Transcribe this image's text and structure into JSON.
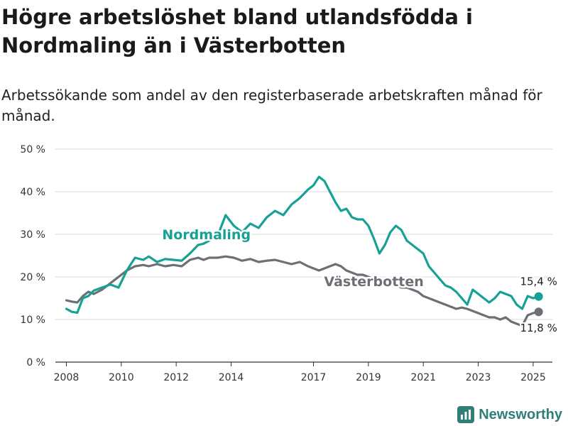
{
  "title": "Högre arbetslöshet bland utlandsfödda i Nordmaling än i Västerbotten",
  "subtitle": "Arbetssökande som andel av den registerbaserade arbetskraften månad för månad.",
  "brand": {
    "name": "Newsworthy",
    "icon": "bar-chart-logo-icon"
  },
  "chart_data": {
    "type": "line",
    "title": "Högre arbetslöshet bland utlandsfödda i Nordmaling än i Västerbotten",
    "subtitle": "Arbetssökande som andel av den registerbaserade arbetskraften månad för månad.",
    "xlabel": "",
    "ylabel": "",
    "ylim": [
      0,
      50
    ],
    "y_ticks": [
      0,
      10,
      20,
      30,
      40,
      50
    ],
    "y_tick_labels": [
      "0 %",
      "10 %",
      "20 %",
      "30 %",
      "40 %",
      "50 %"
    ],
    "x_ticks": [
      2008,
      2010,
      2012,
      2014,
      2017,
      2019,
      2021,
      2023,
      2025
    ],
    "x_tick_labels": [
      "2008",
      "2010",
      "2012",
      "2014",
      "2017",
      "2019",
      "2021",
      "2023",
      "2025"
    ],
    "grid": true,
    "series": [
      {
        "name": "Nordmaling",
        "color": "#17a194",
        "end_label": "15,4 %",
        "points": [
          [
            2008.0,
            12.5
          ],
          [
            2008.2,
            11.8
          ],
          [
            2008.4,
            11.6
          ],
          [
            2008.6,
            15.0
          ],
          [
            2008.8,
            15.5
          ],
          [
            2009.0,
            16.8
          ],
          [
            2009.3,
            17.5
          ],
          [
            2009.6,
            18.2
          ],
          [
            2009.9,
            17.5
          ],
          [
            2010.2,
            21.5
          ],
          [
            2010.5,
            24.5
          ],
          [
            2010.8,
            24.0
          ],
          [
            2011.0,
            24.8
          ],
          [
            2011.3,
            23.5
          ],
          [
            2011.6,
            24.2
          ],
          [
            2011.9,
            24.0
          ],
          [
            2012.2,
            23.8
          ],
          [
            2012.5,
            25.5
          ],
          [
            2012.8,
            27.5
          ],
          [
            2013.0,
            27.8
          ],
          [
            2013.2,
            28.5
          ],
          [
            2013.5,
            29.5
          ],
          [
            2013.8,
            34.5
          ],
          [
            2014.1,
            32.0
          ],
          [
            2014.4,
            30.5
          ],
          [
            2014.7,
            32.5
          ],
          [
            2015.0,
            31.5
          ],
          [
            2015.3,
            34.0
          ],
          [
            2015.6,
            35.5
          ],
          [
            2015.9,
            34.5
          ],
          [
            2016.2,
            37.0
          ],
          [
            2016.5,
            38.5
          ],
          [
            2016.8,
            40.5
          ],
          [
            2017.0,
            41.5
          ],
          [
            2017.2,
            43.5
          ],
          [
            2017.4,
            42.5
          ],
          [
            2017.6,
            40.0
          ],
          [
            2017.8,
            37.5
          ],
          [
            2018.0,
            35.5
          ],
          [
            2018.2,
            36.0
          ],
          [
            2018.4,
            34.0
          ],
          [
            2018.6,
            33.5
          ],
          [
            2018.8,
            33.5
          ],
          [
            2019.0,
            32.0
          ],
          [
            2019.2,
            29.0
          ],
          [
            2019.4,
            25.5
          ],
          [
            2019.6,
            27.5
          ],
          [
            2019.8,
            30.5
          ],
          [
            2020.0,
            32.0
          ],
          [
            2020.2,
            31.0
          ],
          [
            2020.4,
            28.5
          ],
          [
            2020.6,
            27.5
          ],
          [
            2020.8,
            26.5
          ],
          [
            2021.0,
            25.5
          ],
          [
            2021.2,
            22.5
          ],
          [
            2021.4,
            21.0
          ],
          [
            2021.6,
            19.5
          ],
          [
            2021.8,
            18.0
          ],
          [
            2022.0,
            17.5
          ],
          [
            2022.2,
            16.5
          ],
          [
            2022.4,
            15.0
          ],
          [
            2022.6,
            13.5
          ],
          [
            2022.8,
            17.0
          ],
          [
            2023.0,
            16.0
          ],
          [
            2023.2,
            15.0
          ],
          [
            2023.4,
            14.0
          ],
          [
            2023.6,
            15.0
          ],
          [
            2023.8,
            16.5
          ],
          [
            2024.0,
            16.0
          ],
          [
            2024.2,
            15.5
          ],
          [
            2024.4,
            13.5
          ],
          [
            2024.6,
            12.5
          ],
          [
            2024.8,
            15.5
          ],
          [
            2025.0,
            15.0
          ],
          [
            2025.2,
            15.4
          ]
        ]
      },
      {
        "name": "Västerbotten",
        "color": "#6e6e76",
        "end_label": "11,8 %",
        "points": [
          [
            2008.0,
            14.5
          ],
          [
            2008.2,
            14.2
          ],
          [
            2008.4,
            14.0
          ],
          [
            2008.6,
            15.5
          ],
          [
            2008.8,
            16.5
          ],
          [
            2009.0,
            16.0
          ],
          [
            2009.3,
            17.0
          ],
          [
            2009.6,
            18.5
          ],
          [
            2009.9,
            20.0
          ],
          [
            2010.2,
            21.5
          ],
          [
            2010.5,
            22.5
          ],
          [
            2010.8,
            22.8
          ],
          [
            2011.0,
            22.5
          ],
          [
            2011.3,
            23.0
          ],
          [
            2011.6,
            22.5
          ],
          [
            2011.9,
            22.8
          ],
          [
            2012.2,
            22.5
          ],
          [
            2012.5,
            24.0
          ],
          [
            2012.8,
            24.5
          ],
          [
            2013.0,
            24.0
          ],
          [
            2013.2,
            24.5
          ],
          [
            2013.5,
            24.5
          ],
          [
            2013.8,
            24.8
          ],
          [
            2014.1,
            24.5
          ],
          [
            2014.4,
            23.8
          ],
          [
            2014.7,
            24.2
          ],
          [
            2015.0,
            23.5
          ],
          [
            2015.3,
            23.8
          ],
          [
            2015.6,
            24.0
          ],
          [
            2015.9,
            23.5
          ],
          [
            2016.2,
            23.0
          ],
          [
            2016.5,
            23.5
          ],
          [
            2016.8,
            22.5
          ],
          [
            2017.0,
            22.0
          ],
          [
            2017.2,
            21.5
          ],
          [
            2017.4,
            22.0
          ],
          [
            2017.6,
            22.5
          ],
          [
            2017.8,
            23.0
          ],
          [
            2018.0,
            22.5
          ],
          [
            2018.2,
            21.5
          ],
          [
            2018.4,
            21.0
          ],
          [
            2018.6,
            20.5
          ],
          [
            2018.8,
            20.5
          ],
          [
            2019.0,
            20.0
          ],
          [
            2019.2,
            19.5
          ],
          [
            2019.4,
            19.0
          ],
          [
            2019.6,
            18.5
          ],
          [
            2019.8,
            19.0
          ],
          [
            2020.0,
            18.0
          ],
          [
            2020.2,
            17.5
          ],
          [
            2020.4,
            17.5
          ],
          [
            2020.6,
            17.0
          ],
          [
            2020.8,
            16.5
          ],
          [
            2021.0,
            15.5
          ],
          [
            2021.2,
            15.0
          ],
          [
            2021.4,
            14.5
          ],
          [
            2021.6,
            14.0
          ],
          [
            2021.8,
            13.5
          ],
          [
            2022.0,
            13.0
          ],
          [
            2022.2,
            12.5
          ],
          [
            2022.4,
            12.8
          ],
          [
            2022.6,
            12.5
          ],
          [
            2022.8,
            12.0
          ],
          [
            2023.0,
            11.5
          ],
          [
            2023.2,
            11.0
          ],
          [
            2023.4,
            10.5
          ],
          [
            2023.6,
            10.5
          ],
          [
            2023.8,
            10.0
          ],
          [
            2024.0,
            10.5
          ],
          [
            2024.2,
            9.5
          ],
          [
            2024.4,
            9.0
          ],
          [
            2024.6,
            8.5
          ],
          [
            2024.8,
            11.0
          ],
          [
            2025.0,
            11.5
          ],
          [
            2025.2,
            11.8
          ]
        ]
      }
    ]
  }
}
